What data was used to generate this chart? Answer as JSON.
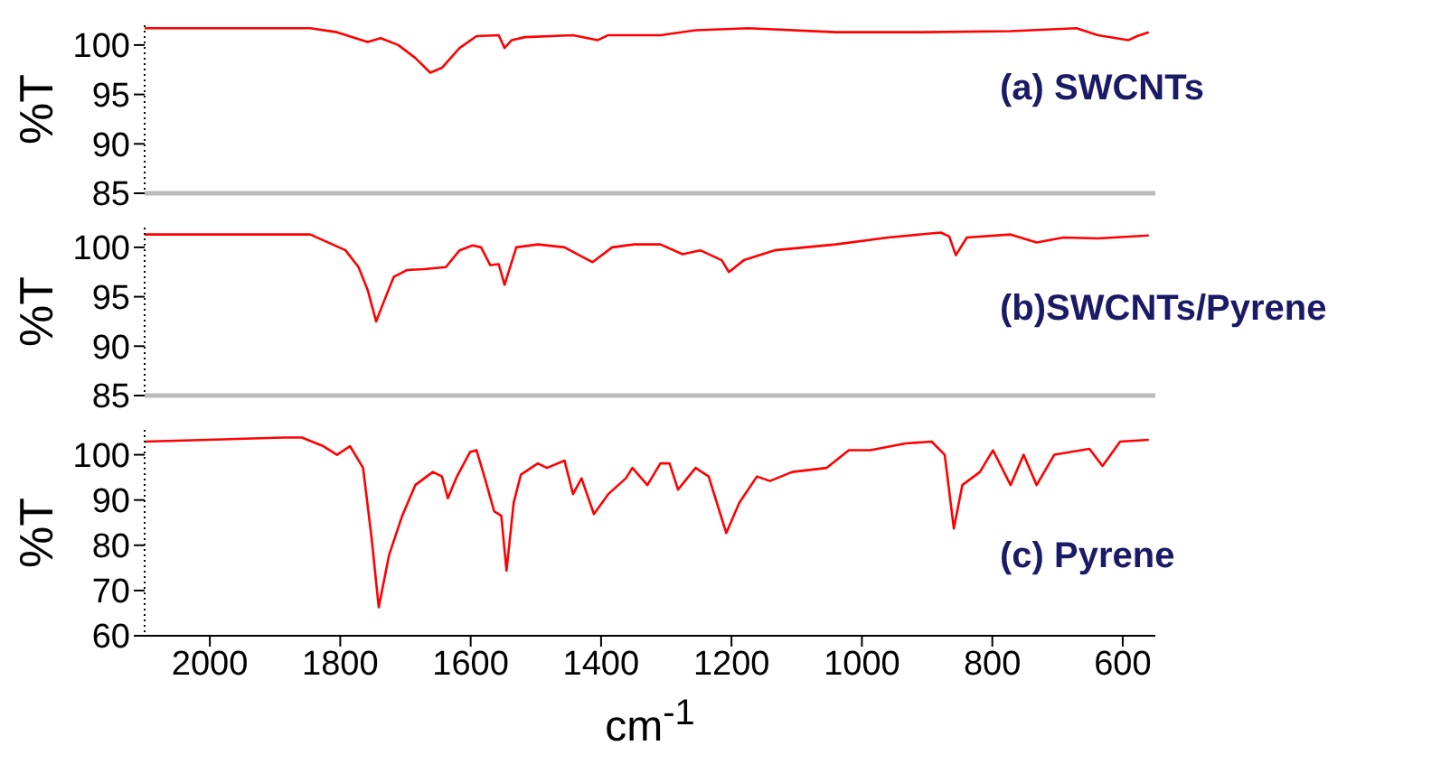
{
  "chart_data": [
    {
      "type": "line",
      "ylabel": "%T",
      "xlim": [
        2100,
        550
      ],
      "ylim": [
        85,
        102
      ],
      "yticks": [
        85,
        90,
        95,
        100
      ],
      "tick_labels": "y",
      "marker": "none",
      "line_style": "solid",
      "series": [
        {
          "name": "(a) SWCNTs",
          "color": "#ff0000",
          "x": [
            2100,
            1846,
            1805,
            1758,
            1738,
            1711,
            1685,
            1662,
            1644,
            1617,
            1591,
            1557,
            1548,
            1537,
            1517,
            1443,
            1405,
            1389,
            1309,
            1255,
            1174,
            1040,
            906,
            772,
            671,
            638,
            591,
            578,
            560
          ],
          "values": [
            101.7,
            101.7,
            101.3,
            100.3,
            100.7,
            100,
            98.7,
            97.2,
            97.7,
            99.7,
            100.9,
            101,
            99.7,
            100.5,
            100.8,
            101,
            100.5,
            101,
            101,
            101.5,
            101.7,
            101.3,
            101.3,
            101.4,
            101.7,
            101,
            100.5,
            100.9,
            101.3
          ]
        }
      ]
    },
    {
      "type": "line",
      "ylabel": "%T",
      "xlim": [
        2100,
        550
      ],
      "ylim": [
        85,
        102
      ],
      "yticks": [
        85,
        90,
        95,
        100
      ],
      "tick_labels": "y",
      "marker": "none",
      "line_style": "solid",
      "series": [
        {
          "name": "(b)SWCNTs/Pyrene",
          "color": "#ff0000",
          "x": [
            2100,
            1846,
            1812,
            1792,
            1772,
            1758,
            1745,
            1732,
            1718,
            1698,
            1671,
            1638,
            1617,
            1597,
            1584,
            1570,
            1557,
            1548,
            1530,
            1497,
            1456,
            1436,
            1413,
            1383,
            1349,
            1309,
            1275,
            1248,
            1215,
            1204,
            1181,
            1134,
            1040,
            960,
            879,
            866,
            856,
            839,
            772,
            732,
            691,
            638,
            560
          ],
          "values": [
            101.3,
            101.3,
            100.3,
            99.7,
            98,
            95.7,
            92.5,
            94.7,
            97,
            97.7,
            97.8,
            98,
            99.7,
            100.2,
            100,
            98.2,
            98.3,
            96.2,
            100,
            100.3,
            100,
            99.3,
            98.5,
            100,
            100.3,
            100.3,
            99.3,
            99.7,
            98.7,
            97.5,
            98.7,
            99.7,
            100.3,
            101,
            101.5,
            101.1,
            99.2,
            101,
            101.3,
            100.5,
            101,
            100.9,
            101.2
          ]
        }
      ]
    },
    {
      "type": "line",
      "ylabel": "%T",
      "xlabel": "cm$^{-1}$",
      "xlim": [
        2100,
        550
      ],
      "xticks": [
        2000,
        1800,
        1600,
        1400,
        1200,
        1000,
        800,
        600
      ],
      "ylim": [
        60,
        105.5
      ],
      "yticks": [
        60,
        70,
        80,
        90,
        100
      ],
      "marker": "none",
      "line_style": "solid",
      "series": [
        {
          "name": "(c) Pyrene",
          "color": "#ff0000",
          "x": [
            2100,
            1886,
            1859,
            1826,
            1805,
            1785,
            1765,
            1752,
            1741,
            1725,
            1705,
            1685,
            1658,
            1644,
            1635,
            1621,
            1601,
            1591,
            1577,
            1564,
            1553,
            1545,
            1534,
            1523,
            1497,
            1483,
            1456,
            1443,
            1430,
            1411,
            1389,
            1362,
            1352,
            1329,
            1309,
            1295,
            1282,
            1255,
            1235,
            1208,
            1188,
            1161,
            1141,
            1107,
            1054,
            1020,
            987,
            933,
            893,
            873,
            859,
            846,
            819,
            799,
            772,
            752,
            732,
            705,
            651,
            631,
            604,
            560
          ],
          "values": [
            102.9,
            103.8,
            103.8,
            101.9,
            100,
            101.9,
            97.1,
            81.7,
            66.3,
            77.9,
            86.5,
            93.3,
            96.2,
            95.2,
            90.4,
            95.2,
            100.6,
            101,
            94.2,
            87.5,
            86.5,
            74.4,
            89.4,
            95.6,
            98.1,
            97.1,
            98.7,
            91.3,
            94.8,
            86.9,
            91.3,
            94.8,
            97.1,
            93.3,
            98.1,
            98.1,
            92.3,
            97.1,
            95.2,
            82.7,
            89.4,
            95.2,
            94.2,
            96.2,
            97.1,
            101,
            101,
            102.5,
            102.9,
            100,
            83.7,
            93.3,
            96.2,
            101,
            93.3,
            100,
            93.3,
            100,
            101.3,
            97.5,
            102.9,
            103.3
          ]
        }
      ]
    }
  ]
}
